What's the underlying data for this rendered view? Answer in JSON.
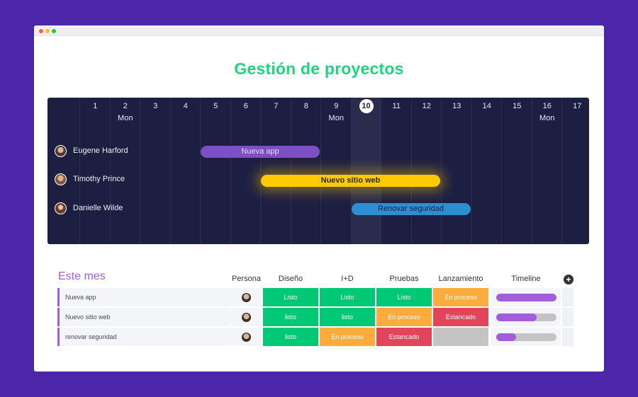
{
  "page_title": "Gestión de proyectos",
  "gantt": {
    "days": [
      {
        "num": "1",
        "name": ""
      },
      {
        "num": "2",
        "name": "Mon"
      },
      {
        "num": "3",
        "name": ""
      },
      {
        "num": "4",
        "name": ""
      },
      {
        "num": "5",
        "name": ""
      },
      {
        "num": "6",
        "name": ""
      },
      {
        "num": "7",
        "name": ""
      },
      {
        "num": "8",
        "name": ""
      },
      {
        "num": "9",
        "name": "Mon"
      },
      {
        "num": "10",
        "name": ""
      },
      {
        "num": "11",
        "name": ""
      },
      {
        "num": "12",
        "name": ""
      },
      {
        "num": "13",
        "name": ""
      },
      {
        "num": "14",
        "name": ""
      },
      {
        "num": "15",
        "name": ""
      },
      {
        "num": "16",
        "name": "Mon"
      },
      {
        "num": "17",
        "name": ""
      }
    ],
    "today": "10",
    "people": [
      {
        "name": "Eugene Harford"
      },
      {
        "name": "Timothy Prince"
      },
      {
        "name": "Danielle Wilde"
      }
    ],
    "bars": [
      {
        "label": "Nueva app",
        "start_day": 5,
        "end_day": 8,
        "color": "#7d4fc4"
      },
      {
        "label": "Nuevo sitio web",
        "start_day": 7,
        "end_day": 12,
        "color": "#ffcb00"
      },
      {
        "label": "Renovar seguridad",
        "start_day": 10,
        "end_day": 13,
        "color": "#2d8ed2"
      }
    ]
  },
  "table": {
    "title": "Este mes",
    "headers": {
      "persona": "Persona",
      "diseno": "Diseño",
      "id": "I+D",
      "pruebas": "Pruebas",
      "lanzamiento": "Lanzamiento",
      "timeline": "Timeline"
    },
    "add_icon": "plus-circle-icon",
    "rows": [
      {
        "name": "Nueva app",
        "diseno": "Listo",
        "id": "Listo",
        "pruebas": "Listo",
        "lanzamiento": "En proceso",
        "timeline_progress": 1.0
      },
      {
        "name": "Nuevo sitio web",
        "diseno": "listo",
        "id": "listo",
        "pruebas": "En proceso",
        "lanzamiento": "Estancado",
        "timeline_progress": 0.68
      },
      {
        "name": "renovar seguridad",
        "diseno": "listo",
        "id": "En proceso",
        "pruebas": "Estancado",
        "lanzamiento": "",
        "timeline_progress": 0.33
      }
    ],
    "status_colors": {
      "green": "#00c875",
      "orange": "#fdab3d",
      "red": "#e2445c",
      "grey": "#c4c4c4"
    }
  }
}
